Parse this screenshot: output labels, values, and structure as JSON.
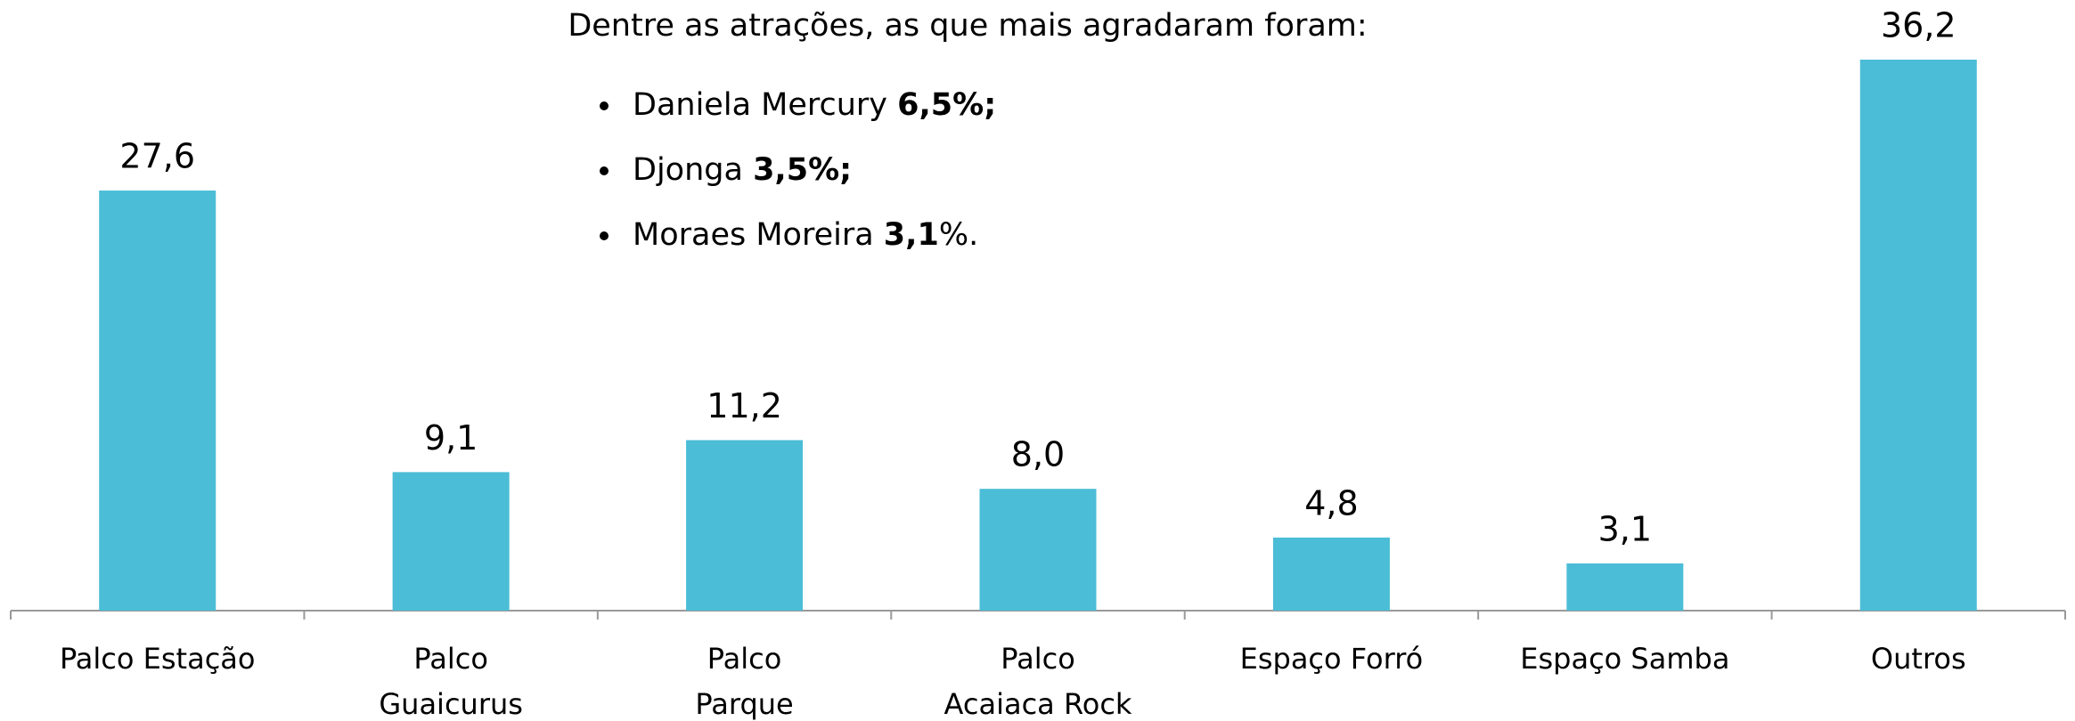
{
  "chart_data": {
    "type": "bar",
    "categories": [
      "Palco Estação",
      "Palco\nGuaicurus",
      "Palco\nParque",
      "Palco\nAcaiaca Rock",
      "Espaço Forró",
      "Espaço Samba",
      "Outros"
    ],
    "values": [
      27.6,
      9.1,
      11.2,
      8.0,
      4.8,
      3.1,
      36.2
    ],
    "value_labels": [
      "27,6",
      "9,1",
      "11,2",
      "8,0",
      "4,8",
      "3,1",
      "36,2"
    ],
    "color": "#4bbdd6",
    "annotation": {
      "title": "Dentre as atrações, as que mais agradaram foram:",
      "bullets": [
        [
          {
            "text": "Daniela Mercury "
          },
          {
            "text": "6,5%;",
            "bold": true
          }
        ],
        [
          {
            "text": "Djonga "
          },
          {
            "text": "3,5%;",
            "bold": true
          }
        ],
        [
          {
            "text": "Moraes Moreira "
          },
          {
            "text": "3,1",
            "bold": true
          },
          {
            "text": "%."
          }
        ]
      ]
    }
  }
}
